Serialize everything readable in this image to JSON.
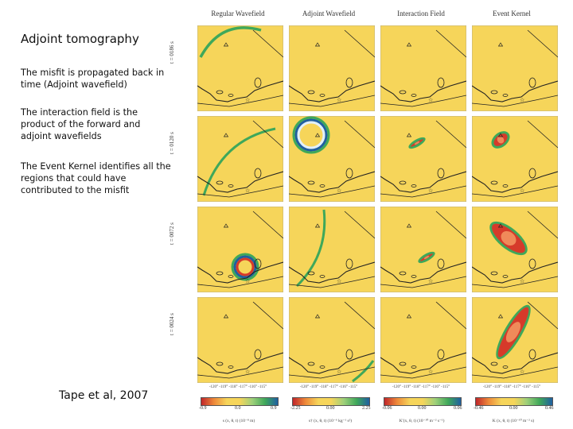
{
  "left": {
    "title": "Adjoint tomography",
    "para1": "The misfit is propagated back in time (Adjoint wavefield)",
    "para2": "The interaction field is the product of the forward and adjoint wavefields",
    "para3": "The Event Kernel identifies all the regions that could have contributed to the misfit",
    "citation": "Tape et al, 2007"
  },
  "columns": [
    "Regular Wavefield",
    "Adjoint Wavefield",
    "Interaction Field",
    "Event Kernel"
  ],
  "rows": [
    "t = 0186 s",
    "t = 0120 s",
    "t = 0072 s",
    "t = 0024 s"
  ],
  "xaxis_ticks": "-120° -119° -118° -117° -116° -115°",
  "colorbars": [
    {
      "ticks": [
        "-0.9",
        "0.0",
        "0.9"
      ],
      "label": "s (x, θ, t) (10⁻⁸ m)"
    },
    {
      "ticks": [
        "-2.25",
        "0.00",
        "2.25"
      ],
      "label": "s† (x, θ, t) (10⁻⁶ kg⁻¹ s²)"
    },
    {
      "ticks": [
        "-0.06",
        "0.00",
        "0.06"
      ],
      "label": "K′(x, θ, t) (10⁻¹⁰ m⁻² s⁻¹)"
    },
    {
      "ticks": [
        "-0.46",
        "0.00",
        "0.46"
      ],
      "label": "K (x, θ, t) (10⁻¹⁰ m⁻² s)"
    }
  ],
  "colors": {
    "map": "#f6d55a",
    "wave_green": "#3fa85a",
    "wave_blue": "#1f5fa0",
    "kernel_red": "#d63a2a",
    "coast": "#222222"
  }
}
